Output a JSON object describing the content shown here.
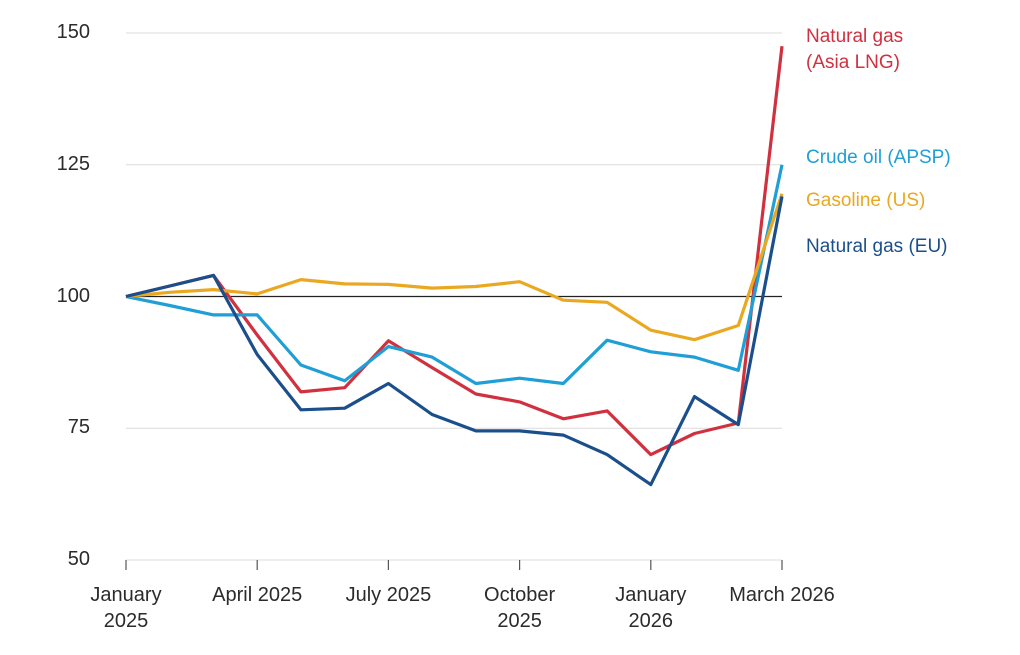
{
  "chart_data": {
    "type": "line",
    "categories": [
      "January 2025",
      null,
      null,
      "April 2025",
      null,
      null,
      "July 2025",
      null,
      null,
      "October 2025",
      null,
      null,
      "January 2026",
      null,
      null,
      "March 2026"
    ],
    "ylim": [
      50,
      150
    ],
    "yticks": [
      50,
      75,
      100,
      125,
      150
    ],
    "reference_line": 100,
    "grid": true,
    "legend": "right",
    "series": [
      {
        "name": "Natural gas (Asia LNG)",
        "color": "#d1303f",
        "values": [
          100,
          102,
          104,
          92.7,
          81.9,
          82.7,
          91.6,
          86.5,
          81.5,
          80,
          76.8,
          78.3,
          70,
          74,
          76,
          147.5
        ]
      },
      {
        "name": "Crude oil (APSP)",
        "color": "#1f9fd5",
        "values": [
          100,
          98.3,
          96.5,
          96.5,
          87,
          84,
          90.5,
          88.5,
          83.5,
          84.5,
          83.5,
          91.7,
          89.5,
          88.5,
          86,
          125
        ]
      },
      {
        "name": "Gasoline (US)",
        "color": "#eaa820",
        "values": [
          100,
          100.8,
          101.3,
          100.5,
          103.2,
          102.4,
          102.3,
          101.6,
          101.9,
          102.8,
          99.3,
          98.9,
          93.6,
          91.8,
          94.5,
          119.5
        ]
      },
      {
        "name": "Natural gas (EU)",
        "color": "#1b4f8c",
        "values": [
          100,
          102,
          104,
          89,
          78.5,
          78.8,
          83.5,
          77.6,
          74.5,
          74.5,
          73.7,
          70,
          64.3,
          81,
          75.7,
          119
        ]
      }
    ]
  }
}
